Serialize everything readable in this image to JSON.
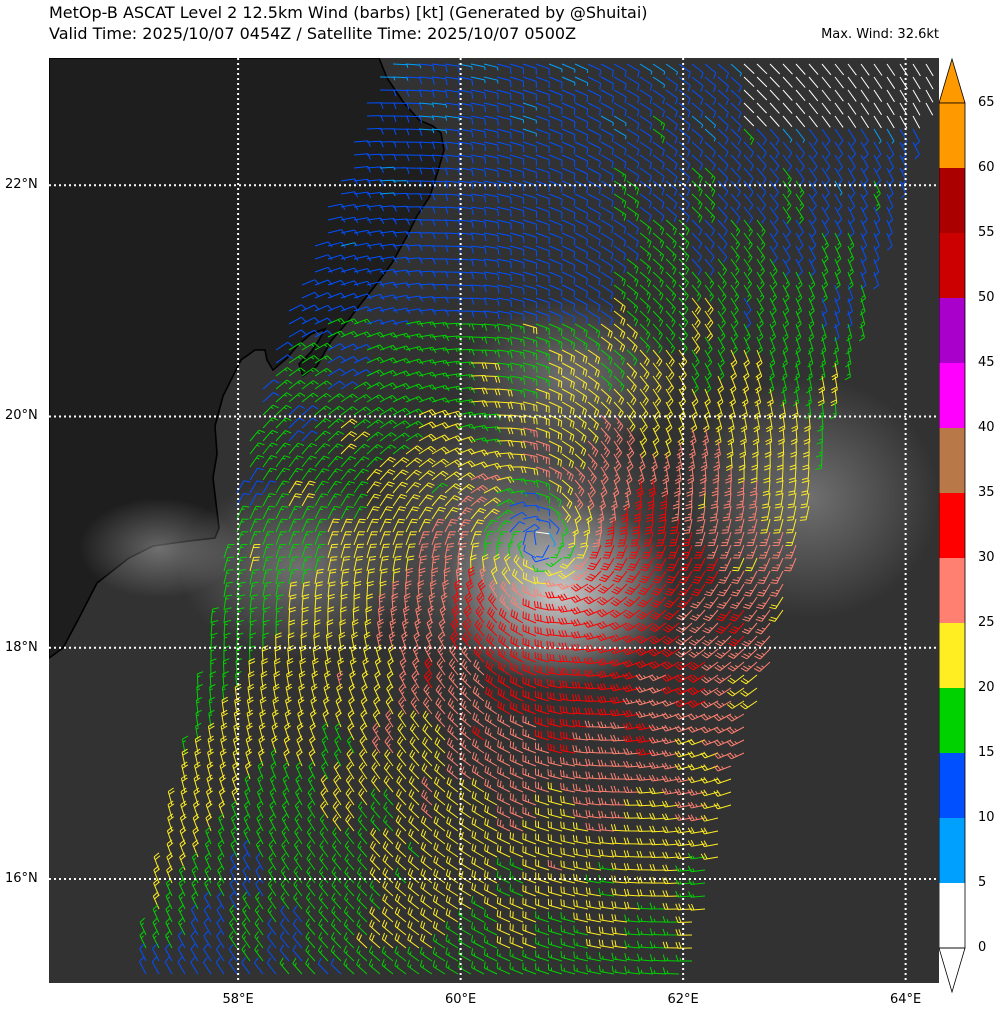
{
  "header": {
    "title_line1": "MetOp-B ASCAT Level 2 12.5km Wind (barbs) [kt] (Generated by @Shuitai)",
    "title_line2": "Valid Time: 2025/10/07 0454Z / Satellite Time: 2025/10/07 0500Z",
    "max_wind": "Max. Wind: 32.6kt"
  },
  "axes": {
    "lat_ticks": [
      "22°N",
      "20°N",
      "18°N",
      "16°N"
    ],
    "lon_ticks": [
      "58°E",
      "60°E",
      "62°E",
      "64°E"
    ],
    "extent": {
      "lon_min": 56.3,
      "lon_max": 64.3,
      "lat_min": 15.1,
      "lat_max": 23.1
    },
    "grid": "dotted white"
  },
  "colorbar": {
    "labels": [
      "65",
      "60",
      "55",
      "50",
      "45",
      "40",
      "35",
      "30",
      "25",
      "20",
      "15",
      "10",
      "5",
      "0"
    ],
    "bins": [
      {
        "min": 0,
        "max": 5,
        "color": "#ffffff"
      },
      {
        "min": 5,
        "max": 10,
        "color": "#00a0ff"
      },
      {
        "min": 10,
        "max": 15,
        "color": "#0050ff"
      },
      {
        "min": 15,
        "max": 20,
        "color": "#00d200"
      },
      {
        "min": 20,
        "max": 25,
        "color": "#ffee22"
      },
      {
        "min": 25,
        "max": 30,
        "color": "#ff8070"
      },
      {
        "min": 30,
        "max": 35,
        "color": "#ff0000"
      },
      {
        "min": 35,
        "max": 40,
        "color": "#b87848"
      },
      {
        "min": 40,
        "max": 45,
        "color": "#ff00ff"
      },
      {
        "min": 45,
        "max": 50,
        "color": "#aa00cc"
      },
      {
        "min": 50,
        "max": 55,
        "color": "#cc0000"
      },
      {
        "min": 55,
        "max": 60,
        "color": "#aa0000"
      },
      {
        "min": 60,
        "max": 65,
        "color": "#ff9900"
      }
    ],
    "over_color": "#ff9900",
    "under_color": "#ffffff"
  },
  "storm": {
    "center_lon": 60.7,
    "center_lat": 18.9,
    "max_wind_kt": 32.6
  },
  "colors": {
    "land": "#1e1e1e",
    "ocean": "#323232",
    "coast": "#000000",
    "grid": "#ffffff"
  }
}
